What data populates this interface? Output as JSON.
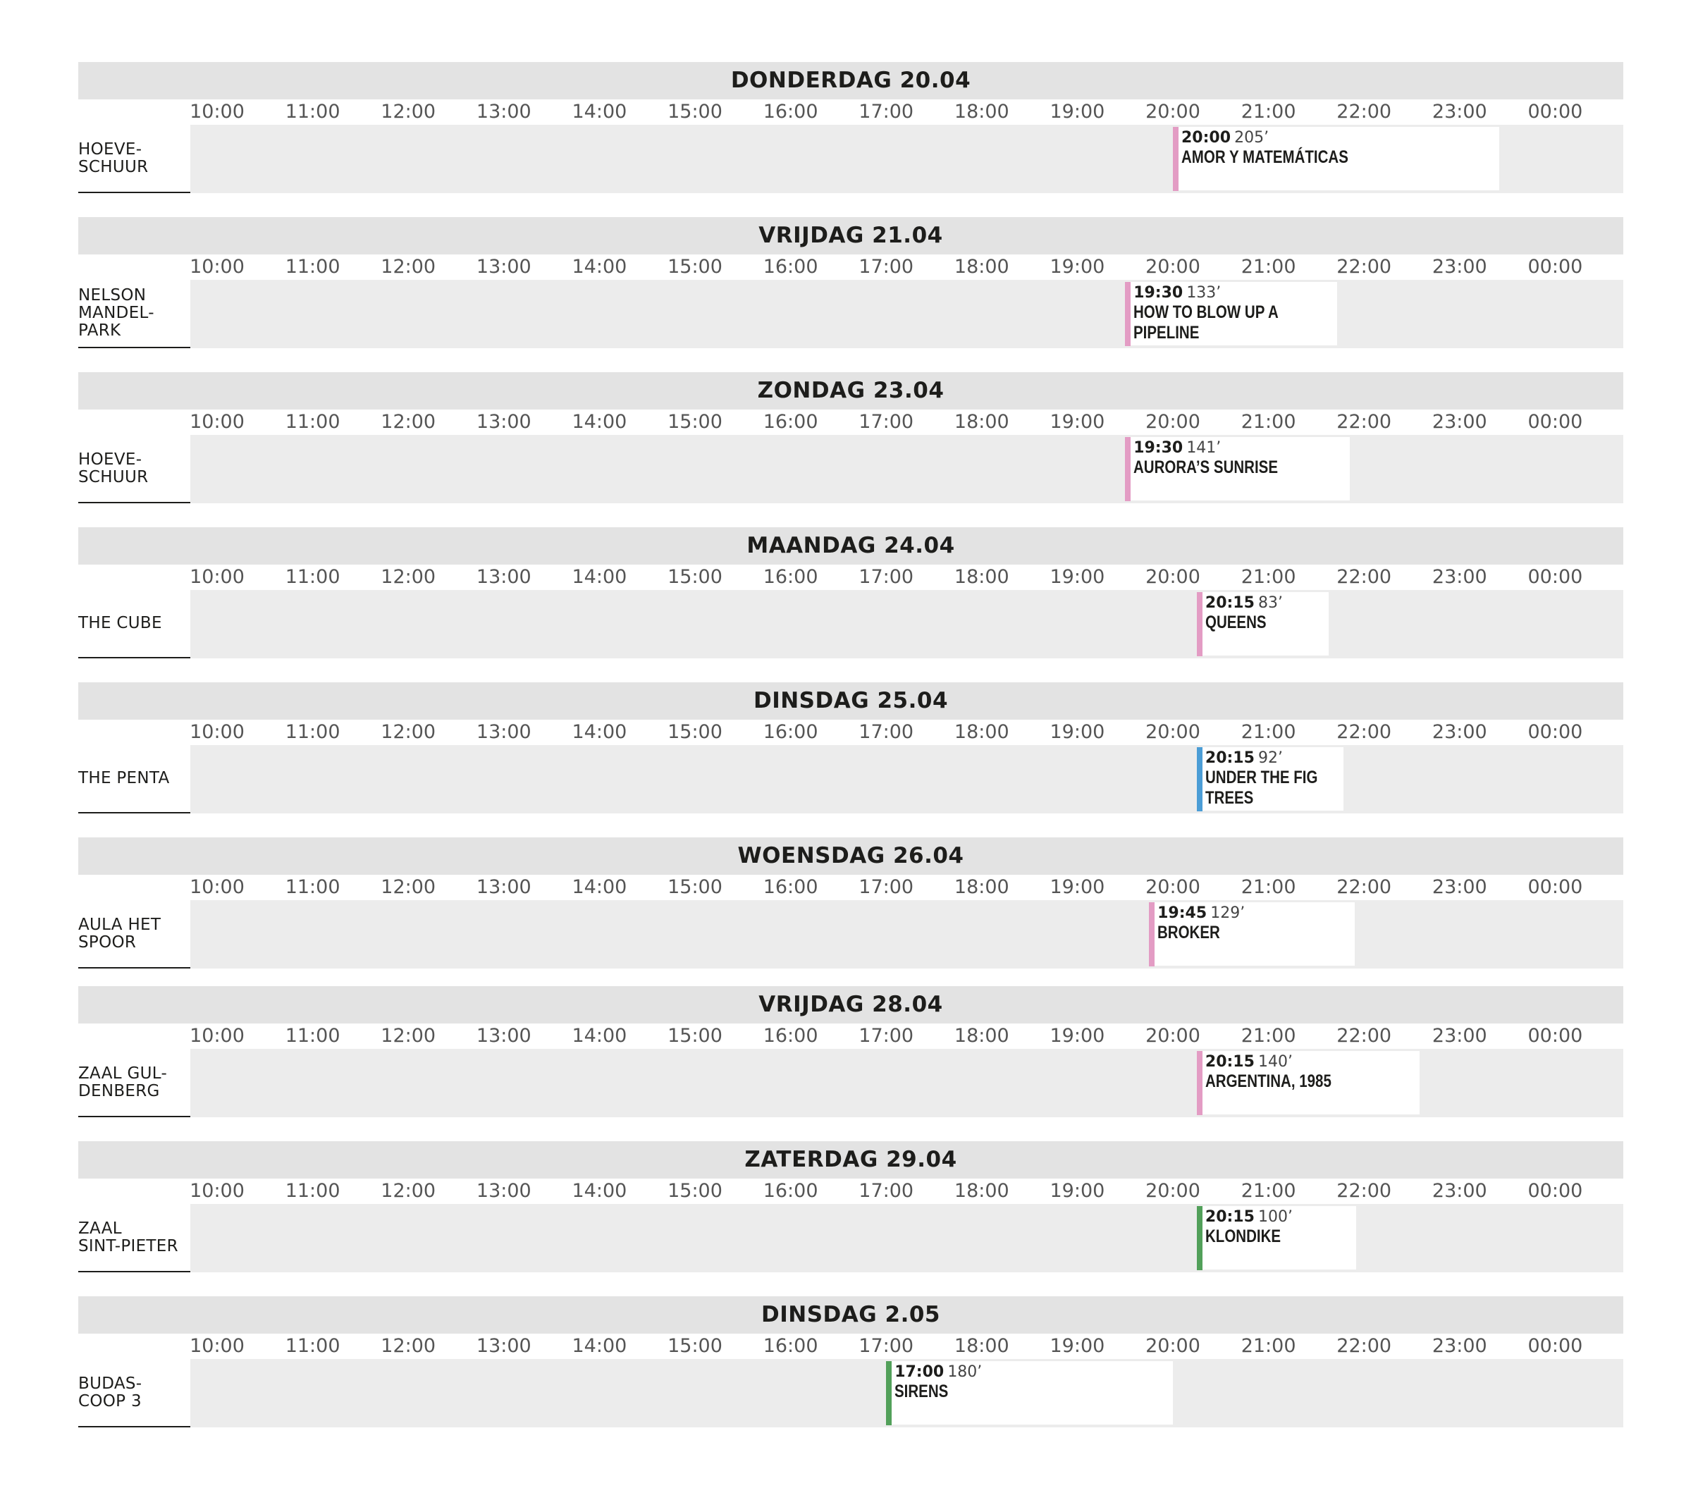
{
  "hours": [
    "10:00",
    "11:00",
    "12:00",
    "13:00",
    "14:00",
    "15:00",
    "16:00",
    "17:00",
    "18:00",
    "19:00",
    "20:00",
    "21:00",
    "22:00",
    "23:00",
    "00:00"
  ],
  "colors": {
    "pink": "#e39cc4",
    "blue": "#4b9dd6",
    "green": "#52a05a"
  },
  "days": [
    {
      "title": "DONDERDAG 20.04",
      "venue": "HOEVE-\nSCHUUR",
      "event": {
        "time": "20:00",
        "duration": "205’",
        "title": "AMOR Y MATEMÁTICAS",
        "color": "pink",
        "start": "20:00"
      }
    },
    {
      "title": "VRIJDAG 21.04",
      "venue": "NELSON\nMANDEL-\nPARK",
      "event": {
        "time": "19:30",
        "duration": "133’",
        "title": "HOW TO BLOW UP A PIPELINE",
        "color": "pink",
        "start": "19:30"
      }
    },
    {
      "title": "ZONDAG 23.04",
      "venue": "HOEVE-\nSCHUUR",
      "event": {
        "time": "19:30",
        "duration": "141’",
        "title": "AURORA’S SUNRISE",
        "color": "pink",
        "start": "19:30"
      }
    },
    {
      "title": "MAANDAG 24.04",
      "venue": "THE CUBE",
      "event": {
        "time": "20:15",
        "duration": "83’",
        "title": "QUEENS",
        "color": "pink",
        "start": "20:15"
      }
    },
    {
      "title": "DINSDAG 25.04",
      "venue": "THE PENTA",
      "event": {
        "time": "20:15",
        "duration": "92’",
        "title": "UNDER THE FIG TREES",
        "color": "blue",
        "start": "20:15"
      }
    },
    {
      "title": "WOENSDAG 26.04",
      "venue": "AULA HET\nSPOOR",
      "event": {
        "time": "19:45",
        "duration": "129’",
        "title": "BROKER",
        "color": "pink",
        "start": "19:45"
      }
    },
    {
      "title": "VRIJDAG 28.04",
      "venue": "ZAAL GUL-\nDENBERG",
      "event": {
        "time": "20:15",
        "duration": "140’",
        "title": "ARGENTINA, 1985",
        "color": "pink",
        "start": "20:15"
      }
    },
    {
      "title": "ZATERDAG 29.04",
      "venue": "ZAAL\nSINT-PIETER",
      "event": {
        "time": "20:15",
        "duration": "100’",
        "title": "KLONDIKE",
        "color": "green",
        "start": "20:15"
      }
    },
    {
      "title": "DINSDAG 2.05",
      "venue": "BUDAS-\nCOOP 3",
      "event": {
        "time": "17:00",
        "duration": "180’",
        "title": "SIRENS",
        "color": "green",
        "start": "17:00"
      }
    }
  ]
}
